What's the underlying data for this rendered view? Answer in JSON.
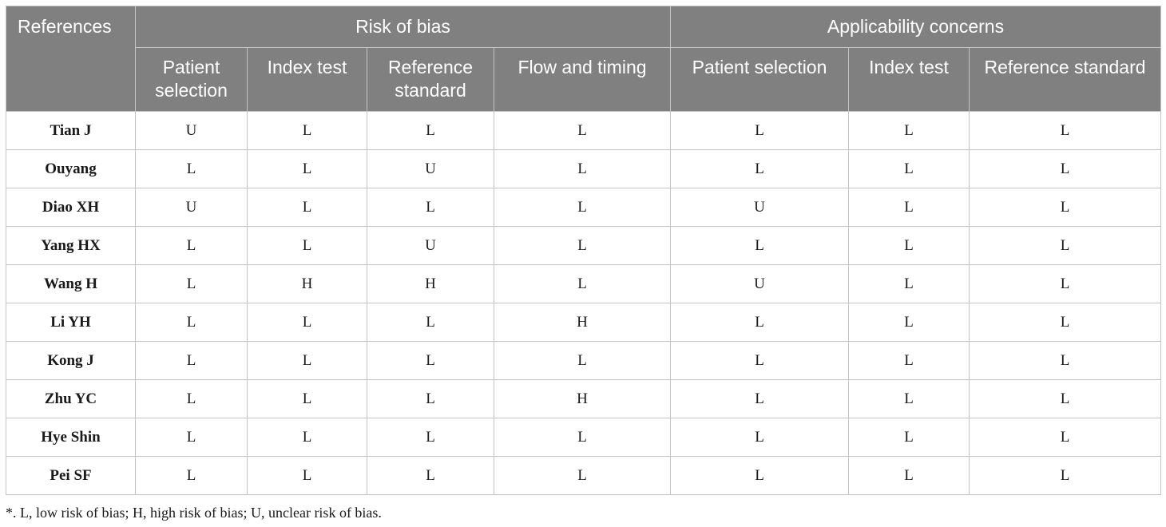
{
  "table": {
    "header_groups": {
      "references": "References",
      "risk_of_bias": "Risk of bias",
      "applicability": "Applicability concerns"
    },
    "sub_headers": [
      "Patient selection",
      "Index test",
      "Reference standard",
      "Flow and timing",
      "Patient selection",
      "Index test",
      "Reference standard"
    ],
    "rows": [
      {
        "ref": "Tian J",
        "cells": [
          "U",
          "L",
          "L",
          "L",
          "L",
          "L",
          "L"
        ]
      },
      {
        "ref": "Ouyang",
        "cells": [
          "L",
          "L",
          "U",
          "L",
          "L",
          "L",
          "L"
        ]
      },
      {
        "ref": "Diao XH",
        "cells": [
          "U",
          "L",
          "L",
          "L",
          "U",
          "L",
          "L"
        ]
      },
      {
        "ref": "Yang HX",
        "cells": [
          "L",
          "L",
          "U",
          "L",
          "L",
          "L",
          "L"
        ]
      },
      {
        "ref": "Wang H",
        "cells": [
          "L",
          "H",
          "H",
          "L",
          "U",
          "L",
          "L"
        ]
      },
      {
        "ref": "Li YH",
        "cells": [
          "L",
          "L",
          "L",
          "H",
          "L",
          "L",
          "L"
        ]
      },
      {
        "ref": "Kong J",
        "cells": [
          "L",
          "L",
          "L",
          "L",
          "L",
          "L",
          "L"
        ]
      },
      {
        "ref": "Zhu YC",
        "cells": [
          "L",
          "L",
          "L",
          "H",
          "L",
          "L",
          "L"
        ]
      },
      {
        "ref": "Hye Shin",
        "cells": [
          "L",
          "L",
          "L",
          "L",
          "L",
          "L",
          "L"
        ]
      },
      {
        "ref": "Pei SF",
        "cells": [
          "L",
          "L",
          "L",
          "L",
          "L",
          "L",
          "L"
        ]
      }
    ]
  },
  "footnote": "*. L, low risk of bias; H, high risk of bias; U, unclear risk of bias."
}
